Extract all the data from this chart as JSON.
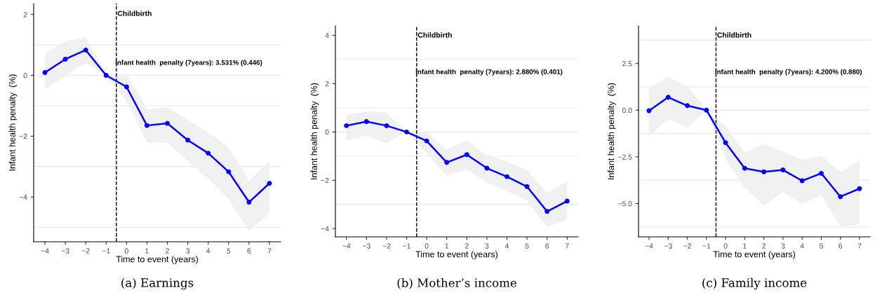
{
  "chart_data": [
    {
      "type": "line",
      "xlabel": "Time to event (years)",
      "ylabel": "Infant health penalty  (%)",
      "x": [
        -4,
        -3,
        -2,
        -1,
        0,
        1,
        2,
        3,
        4,
        5,
        6,
        7
      ],
      "series": [
        {
          "color": "#0000ff",
          "values": [
            0.09,
            0.53,
            0.83,
            0,
            -0.38,
            -1.65,
            -1.58,
            -2.13,
            -2.56,
            -3.17,
            -4.17,
            -3.55
          ],
          "lower": [
            -0.46,
            -0.02,
            0.41,
            0,
            -0.84,
            -2.21,
            -2.21,
            -2.81,
            -3.39,
            -4.08,
            -5.11,
            -4.54
          ],
          "upper": [
            0.7,
            1.13,
            1.25,
            0,
            0.05,
            -1.11,
            -1.05,
            -1.47,
            -1.88,
            -2.37,
            -3.46,
            -2.81
          ]
        }
      ],
      "marker": "circle",
      "line_style": "solid",
      "grid": false,
      "xlim": [
        -4.55,
        7.55
      ],
      "xticks": [
        {
          "value": -4,
          "label": "−4"
        },
        {
          "value": -3,
          "label": "−3"
        },
        {
          "value": -2,
          "label": "−2"
        },
        {
          "value": -1,
          "label": "−1"
        },
        0,
        1,
        2,
        3,
        4,
        5,
        6,
        7
      ],
      "ylim": [
        -5.47,
        2.36
      ],
      "yticks": [
        {
          "value": -4,
          "label": "−4"
        },
        {
          "value": -2,
          "label": "−2"
        },
        0,
        2
      ],
      "ref_lines": [
        {
          "axis": "x",
          "value": -0.5,
          "label": "Childbirth",
          "color": "#000000",
          "line_style": "dashed"
        },
        {
          "axis": "y",
          "value": 1,
          "color": "#ebebeb"
        },
        {
          "axis": "y",
          "value": 0,
          "color": "#ebebeb"
        },
        {
          "axis": "y",
          "value": -1,
          "color": "#ebebeb"
        },
        {
          "axis": "y",
          "value": -3,
          "color": "#ebebeb"
        },
        {
          "axis": "y",
          "value": -5,
          "color": "#ebebeb"
        }
      ],
      "annotations": [
        "Infant health  penalty (7years): 3.531% (0.446)",
        "(a) Earnings"
      ]
    },
    {
      "type": "line",
      "xlabel": "Time to event (years)",
      "ylabel": "Infant health penalty  (%)",
      "x": [
        -4,
        -3,
        -2,
        -1,
        0,
        1,
        2,
        3,
        4,
        5,
        6,
        7
      ],
      "series": [
        {
          "color": "#0000ff",
          "values": [
            0.26,
            0.43,
            0.26,
            0,
            -0.37,
            -1.26,
            -0.94,
            -1.5,
            -1.85,
            -2.26,
            -3.29,
            -2.86
          ],
          "lower": [
            -0.34,
            -0.15,
            -0.46,
            0,
            -0.88,
            -1.81,
            -1.55,
            -2.1,
            -2.45,
            -2.84,
            -3.94,
            -3.61
          ],
          "upper": [
            0.69,
            0.86,
            0.79,
            0,
            -0.02,
            -0.73,
            -0.36,
            -0.96,
            -1.22,
            -1.58,
            -2.53,
            -2.05
          ]
        }
      ],
      "marker": "circle",
      "line_style": "solid",
      "grid": false,
      "xlim": [
        -4.55,
        7.55
      ],
      "xticks": [
        {
          "value": -4,
          "label": "−4"
        },
        {
          "value": -3,
          "label": "−3"
        },
        {
          "value": -2,
          "label": "−2"
        },
        {
          "value": -1,
          "label": "−1"
        },
        0,
        1,
        2,
        3,
        4,
        5,
        6,
        7
      ],
      "ylim": [
        -4.34,
        4.39
      ],
      "yticks": [
        {
          "value": -4,
          "label": "−4"
        },
        {
          "value": -2,
          "label": "−2"
        },
        0,
        2,
        4
      ],
      "ref_lines": [
        {
          "axis": "x",
          "value": -0.5,
          "label": "Childbirth",
          "color": "#000000",
          "line_style": "dashed"
        },
        {
          "axis": "y",
          "value": 3,
          "color": "#ebebeb"
        },
        {
          "axis": "y",
          "value": 1,
          "color": "#ebebeb"
        },
        {
          "axis": "y",
          "value": 0,
          "color": "#ebebeb"
        },
        {
          "axis": "y",
          "value": -1,
          "color": "#ebebeb"
        },
        {
          "axis": "y",
          "value": -3,
          "color": "#ebebeb"
        }
      ],
      "annotations": [
        "Infant health  penalty (7years): 2.880% (0.401)",
        "(b) Mother’s income"
      ]
    },
    {
      "type": "line",
      "xlabel": "Time to event (years)",
      "ylabel": "Infant health penalty  (%)",
      "x": [
        -4,
        -3,
        -2,
        -1,
        0,
        1,
        2,
        3,
        4,
        5,
        6,
        7
      ],
      "series": [
        {
          "color": "#0000ff",
          "values": [
            -0.03,
            0.69,
            0.24,
            0,
            -1.74,
            -3.11,
            -3.3,
            -3.2,
            -3.78,
            -3.38,
            -4.63,
            -4.2
          ],
          "lower": [
            -1.39,
            -0.46,
            -0.93,
            0,
            -2.61,
            -4.15,
            -5.09,
            -4.38,
            -5.03,
            -4.55,
            -6.24,
            -6.11
          ],
          "upper": [
            1.16,
            1.8,
            1.29,
            0,
            -0.84,
            -2.28,
            -1.8,
            -2.21,
            -2.65,
            -2.44,
            -3.31,
            -2.68
          ]
        }
      ],
      "marker": "circle",
      "line_style": "solid",
      "grid": false,
      "xlim": [
        -4.55,
        7.55
      ],
      "xticks": [
        {
          "value": -4,
          "label": "−4"
        },
        {
          "value": -3,
          "label": "−3"
        },
        {
          "value": -2,
          "label": "−2"
        },
        {
          "value": -1,
          "label": "−1"
        },
        0,
        1,
        2,
        3,
        4,
        5,
        6,
        7
      ],
      "ylim": [
        -6.78,
        4.51
      ],
      "yticks": [
        {
          "value": -5,
          "label": "−5.0"
        },
        {
          "value": -2.5,
          "label": "−2.5"
        },
        {
          "value": 0,
          "label": "0.0"
        },
        2.5
      ],
      "ref_lines": [
        {
          "axis": "x",
          "value": -0.5,
          "label": "Childbirth",
          "color": "#000000",
          "line_style": "dashed"
        },
        {
          "axis": "y",
          "value": 3.75,
          "color": "#ebebeb"
        },
        {
          "axis": "y",
          "value": 1.25,
          "color": "#ebebeb"
        },
        {
          "axis": "y",
          "value": 0,
          "color": "#ebebeb"
        },
        {
          "axis": "y",
          "value": -1.25,
          "color": "#ebebeb"
        },
        {
          "axis": "y",
          "value": -3.75,
          "color": "#ebebeb"
        },
        {
          "axis": "y",
          "value": -6.25,
          "color": "#ebebeb"
        }
      ],
      "annotations": [
        "Infant health  penalty (7years): 4.200% (0.880)",
        "(c) Family income"
      ]
    }
  ]
}
